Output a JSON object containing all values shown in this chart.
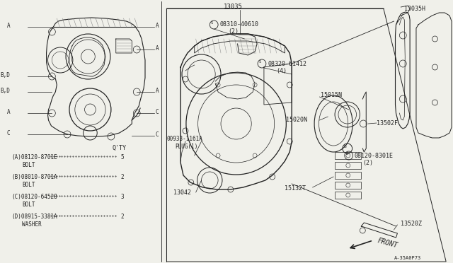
{
  "bg_color": "#f0f0ea",
  "line_color": "#222222",
  "parts_list": [
    {
      "code": "(A)08120-8701E",
      "qty": "5",
      "name": "BOLT"
    },
    {
      "code": "(B)08010-8701A",
      "qty": "2",
      "name": "BOLT"
    },
    {
      "code": "(C)08120-64528",
      "qty": "3",
      "name": "BOLT"
    },
    {
      "code": "(D)08915-3381A",
      "qty": "2",
      "name": "WASHER"
    }
  ],
  "diagram_number": "A-35A0P73",
  "label_13035": "13035",
  "label_13035H": "13035H",
  "label_08310": "08310-40610",
  "label_08310_qty": "(2)",
  "label_08320": "08320-61412",
  "label_08320_qty": "(4)",
  "label_15015N": "15015N",
  "label_15020N": "15020N",
  "label_13502F": "13502F",
  "label_00933": "00933-1161A",
  "label_plug": "PLUG(1)",
  "label_08120_b": "08120-8301E",
  "label_08120_b_qty": "(2)",
  "label_15132T": "15132T",
  "label_13042": "13042",
  "label_13520Z": "13520Z",
  "label_front": "FRONT",
  "qty_label": "Q'TY"
}
